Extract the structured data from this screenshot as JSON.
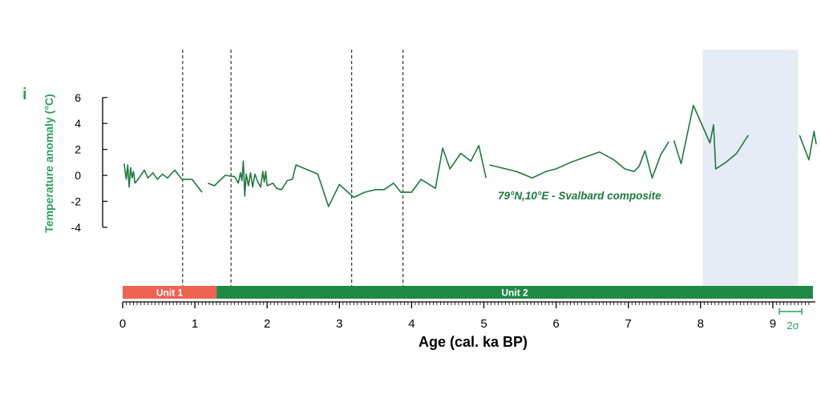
{
  "chart_data": {
    "type": "line",
    "panel_label": "i",
    "ylabel": "Temperature anomaly (°C)",
    "xlabel": "Age (cal. ka BP)",
    "annotation": "79°N,10°E - Svalbard composite",
    "two_sigma_label": "2σ",
    "xlim": [
      0,
      9.5
    ],
    "ylim": [
      -4,
      6
    ],
    "x_ticks": [
      "0",
      "1",
      "2",
      "3",
      "4",
      "5",
      "6",
      "7",
      "8",
      "9"
    ],
    "y_ticks": [
      "6",
      "4",
      "2",
      "0",
      "-2",
      "-4"
    ],
    "units": [
      {
        "label": "Unit 1",
        "start": 0,
        "end": 1.3,
        "color": "#ee6352"
      },
      {
        "label": "Unit 2",
        "start": 1.3,
        "end": 9.5,
        "color": "#1f8a46"
      }
    ],
    "vertical_lines": [
      0.83,
      1.5,
      3.17,
      3.88
    ],
    "shaded_interval": [
      8.03,
      9.35
    ],
    "colors": {
      "series": "#1e7a3e",
      "label_green": "#2aa35b",
      "shade": "#e6ecf6",
      "axis": "#000000"
    },
    "series": [
      {
        "segments": [
          [
            [
              0.02,
              0.9
            ],
            [
              0.05,
              -0.3
            ],
            [
              0.07,
              0.8
            ],
            [
              0.09,
              -0.9
            ],
            [
              0.11,
              0.6
            ],
            [
              0.13,
              -0.2
            ],
            [
              0.15,
              0.3
            ],
            [
              0.17,
              -0.6
            ],
            [
              0.2,
              -0.4
            ],
            [
              0.3,
              0.4
            ],
            [
              0.35,
              -0.2
            ],
            [
              0.42,
              0.2
            ],
            [
              0.48,
              -0.3
            ],
            [
              0.55,
              0.1
            ],
            [
              0.62,
              -0.2
            ],
            [
              0.72,
              0.4
            ],
            [
              0.82,
              -0.3
            ],
            [
              0.96,
              -0.3
            ],
            [
              1.1,
              -1.3
            ]
          ],
          [
            [
              1.18,
              -0.6
            ],
            [
              1.27,
              -0.8
            ],
            [
              1.42,
              0.0
            ],
            [
              1.55,
              -0.1
            ],
            [
              1.6,
              -0.6
            ],
            [
              1.63,
              0.2
            ],
            [
              1.65,
              -0.4
            ],
            [
              1.67,
              1.1
            ],
            [
              1.69,
              -1.6
            ],
            [
              1.71,
              0.1
            ],
            [
              1.74,
              -0.8
            ],
            [
              1.77,
              0.2
            ],
            [
              1.8,
              -0.9
            ],
            [
              1.83,
              0.1
            ],
            [
              1.87,
              -0.5
            ],
            [
              1.91,
              -0.9
            ],
            [
              1.94,
              0.3
            ],
            [
              1.96,
              -0.5
            ],
            [
              1.98,
              0.3
            ],
            [
              2.0,
              -0.8
            ],
            [
              2.04,
              -0.7
            ],
            [
              2.08,
              -0.6
            ],
            [
              2.13,
              -1.0
            ],
            [
              2.2,
              -1.1
            ],
            [
              2.28,
              -0.4
            ],
            [
              2.35,
              -0.3
            ],
            [
              2.4,
              0.8
            ],
            [
              2.7,
              0.1
            ],
            [
              2.85,
              -2.4
            ],
            [
              3.0,
              -0.7
            ],
            [
              3.12,
              -1.3
            ],
            [
              3.2,
              -1.7
            ],
            [
              3.35,
              -1.3
            ],
            [
              3.5,
              -1.1
            ],
            [
              3.62,
              -1.1
            ],
            [
              3.75,
              -0.6
            ],
            [
              3.85,
              -1.3
            ],
            [
              4.0,
              -1.3
            ],
            [
              4.13,
              -0.3
            ],
            [
              4.33,
              -1.0
            ],
            [
              4.43,
              2.1
            ],
            [
              4.53,
              0.5
            ],
            [
              4.68,
              1.7
            ],
            [
              4.82,
              1.1
            ],
            [
              4.93,
              2.3
            ],
            [
              5.03,
              -0.2
            ]
          ],
          [
            [
              5.08,
              0.8
            ],
            [
              5.45,
              0.3
            ],
            [
              5.67,
              -0.2
            ],
            [
              5.86,
              0.3
            ],
            [
              6.0,
              0.5
            ],
            [
              6.2,
              1.0
            ],
            [
              6.6,
              1.8
            ],
            [
              6.8,
              1.2
            ],
            [
              6.95,
              0.5
            ],
            [
              7.08,
              0.3
            ],
            [
              7.15,
              0.7
            ],
            [
              7.23,
              1.9
            ],
            [
              7.33,
              -0.2
            ],
            [
              7.45,
              1.6
            ],
            [
              7.56,
              2.6
            ]
          ],
          [
            [
              7.63,
              2.7
            ],
            [
              7.73,
              0.9
            ],
            [
              7.9,
              5.4
            ],
            [
              8.13,
              2.5
            ],
            [
              8.18,
              3.9
            ],
            [
              8.21,
              0.5
            ],
            [
              8.35,
              1.0
            ],
            [
              8.5,
              1.7
            ],
            [
              8.66,
              3.1
            ]
          ],
          [
            [
              9.37,
              3.1
            ],
            [
              9.5,
              1.2
            ],
            [
              9.57,
              3.4
            ],
            [
              9.6,
              2.4
            ]
          ]
        ]
      }
    ]
  }
}
